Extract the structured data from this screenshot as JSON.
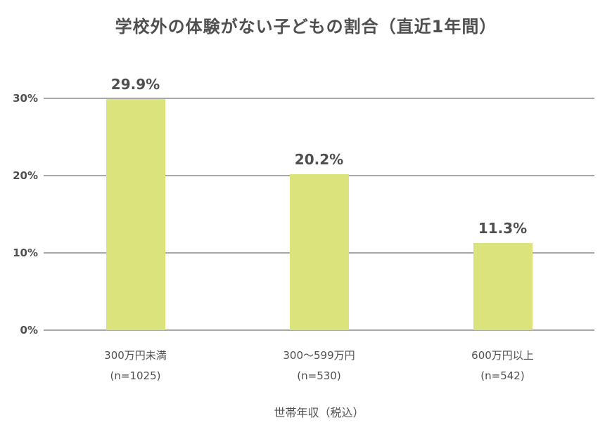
{
  "chart_data": {
    "type": "bar",
    "title": "学校外の体験がない子どもの割合（直近1年間）",
    "xlabel": "世帯年収（税込）",
    "ylabel": "",
    "ylim": [
      0,
      30
    ],
    "yticks": [
      "0%",
      "10%",
      "20%",
      "30%"
    ],
    "ytick_values": [
      0,
      10,
      20,
      30
    ],
    "categories": [
      "300万円未満",
      "300〜599万円",
      "600万円以上"
    ],
    "subcategories": [
      "(n=1025)",
      "(n=530)",
      "(n=542)"
    ],
    "values": [
      29.9,
      20.2,
      11.3
    ],
    "value_labels": [
      "29.9%",
      "20.2%",
      "11.3%"
    ],
    "grid": true,
    "legend": false,
    "colors": {
      "bar": "#dbe47c",
      "text": "#4f4f4f",
      "gridline": "#a8a8a8"
    }
  }
}
